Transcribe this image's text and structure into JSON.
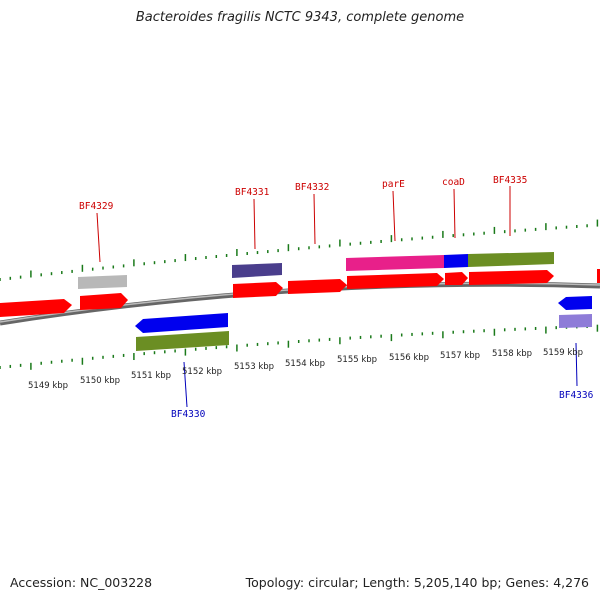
{
  "header": {
    "title": "Bacteroides fragilis NCTC 9343, complete genome"
  },
  "footer": {
    "accession": "Accession: NC_003228",
    "topology": "Topology: circular; Length: 5,205,140 bp; Genes: 4,276"
  },
  "scale_labels": [
    "5149 kbp",
    "5150 kbp",
    "5151 kbp",
    "5152 kbp",
    "5153 kbp",
    "5154 kbp",
    "5155 kbp",
    "5156 kbp",
    "5157 kbp",
    "5158 kbp",
    "5159 kbp"
  ],
  "gene_labels": {
    "BF4329": "BF4329",
    "BF4330": "BF4330",
    "BF4331": "BF4331",
    "BF4332": "BF4332",
    "parE": "parE",
    "coaD": "coaD",
    "BF4335": "BF4335",
    "BF4336": "BF4336"
  },
  "colors": {
    "cds": "#ff0000",
    "feature_blue": "#0000ee",
    "feature_olive": "#6b8e23",
    "feature_pink": "#e8208a",
    "feature_slate": "#4a3e8c",
    "feature_gray": "#b8b8b8",
    "feature_lavender": "#8e7cd8",
    "label_forward": "#cc0000",
    "label_reverse": "#0000bb",
    "tick": "#1a7a1a",
    "backbone": "#888888"
  }
}
